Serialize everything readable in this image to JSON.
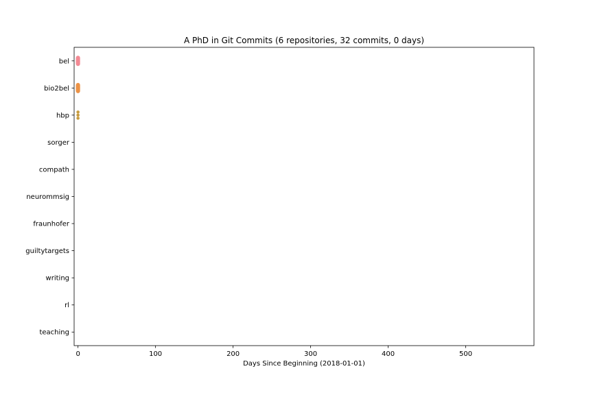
{
  "chart_data": {
    "type": "scatter",
    "title": "A PhD in Git Commits (6 repositories, 32 commits, 0 days)",
    "xlabel": "Days Since Beginning (2018-01-01)",
    "ylabel": "",
    "xlim": [
      -5,
      588
    ],
    "xticks": [
      0,
      100,
      200,
      300,
      400,
      500
    ],
    "categories": [
      "bel",
      "bio2bel",
      "hbp",
      "sorger",
      "compath",
      "neurommsig",
      "fraunhofer",
      "guiltytargets",
      "writing",
      "rl",
      "teaching"
    ],
    "grid": false,
    "series": [
      {
        "category": "bel",
        "color": "#f38a95",
        "x": [
          0,
          0,
          0,
          0,
          0,
          0,
          0,
          0,
          0,
          0,
          0,
          0,
          0,
          0
        ]
      },
      {
        "category": "bio2bel",
        "color": "#ec9347",
        "x": [
          0,
          0,
          0,
          0,
          0,
          0,
          0,
          0,
          0,
          0,
          0,
          0,
          0,
          0,
          0
        ]
      },
      {
        "category": "hbp",
        "color": "#c89c3f",
        "x": [
          0,
          0,
          0
        ]
      }
    ]
  }
}
